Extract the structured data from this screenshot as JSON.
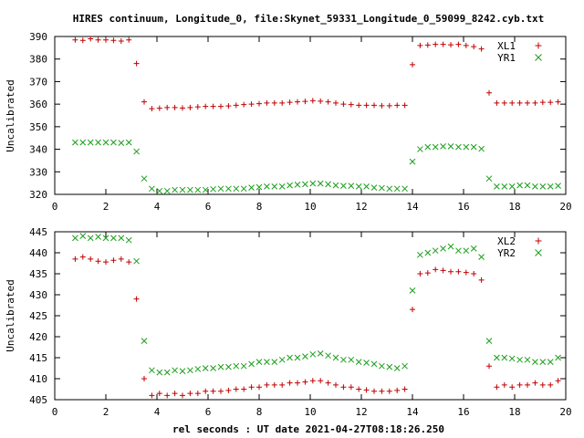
{
  "title": "HIRES continuum, Longitude_0, file:Skynet_59331_Longitude_0_59099_8242.cyb.txt",
  "xlabel": "rel seconds : UT date 2021-04-27T08:18:26.250",
  "colors": {
    "xl": "#c00000",
    "yr": "#1a9e1a"
  },
  "chart_data": [
    {
      "type": "scatter",
      "ylabel": "Uncalibrated",
      "xlim": [
        0,
        20
      ],
      "ylim": [
        320,
        390
      ],
      "xticks": [
        0,
        2,
        4,
        6,
        8,
        10,
        12,
        14,
        16,
        18,
        20
      ],
      "yticks": [
        320,
        330,
        340,
        350,
        360,
        370,
        380,
        390
      ],
      "legend_position": "top-right",
      "series": [
        {
          "name": "XL1",
          "marker": "plus",
          "x": [
            0.8,
            1.1,
            1.4,
            1.7,
            2.0,
            2.3,
            2.6,
            2.9,
            3.2,
            3.5,
            3.8,
            4.1,
            4.4,
            4.7,
            5.0,
            5.3,
            5.6,
            5.9,
            6.2,
            6.5,
            6.8,
            7.1,
            7.4,
            7.7,
            8.0,
            8.3,
            8.6,
            8.9,
            9.2,
            9.5,
            9.8,
            10.1,
            10.4,
            10.7,
            11.0,
            11.3,
            11.6,
            11.9,
            12.2,
            12.5,
            12.8,
            13.1,
            13.4,
            13.7,
            14.0,
            14.3,
            14.6,
            14.9,
            15.2,
            15.5,
            15.8,
            16.1,
            16.4,
            16.7,
            17.0,
            17.3,
            17.6,
            17.9,
            18.2,
            18.5,
            18.8,
            19.1,
            19.4,
            19.7
          ],
          "y": [
            388.5,
            388.3,
            389.0,
            388.5,
            388.5,
            388.3,
            388.0,
            388.5,
            378.0,
            361.0,
            358.0,
            358.2,
            358.5,
            358.5,
            358.3,
            358.5,
            358.8,
            359.0,
            359.0,
            359.0,
            359.2,
            359.5,
            359.8,
            360.0,
            360.2,
            360.5,
            360.5,
            360.5,
            360.8,
            361.0,
            361.2,
            361.5,
            361.3,
            361.0,
            360.5,
            360.0,
            359.8,
            359.5,
            359.5,
            359.5,
            359.3,
            359.3,
            359.5,
            359.5,
            377.5,
            386.0,
            386.2,
            386.5,
            386.5,
            386.3,
            386.5,
            386.0,
            385.5,
            384.5,
            365.0,
            360.5,
            360.5,
            360.5,
            360.5,
            360.5,
            360.5,
            360.8,
            360.8,
            361.0
          ]
        },
        {
          "name": "YR1",
          "marker": "cross",
          "x": [
            0.8,
            1.1,
            1.4,
            1.7,
            2.0,
            2.3,
            2.6,
            2.9,
            3.2,
            3.5,
            3.8,
            4.1,
            4.4,
            4.7,
            5.0,
            5.3,
            5.6,
            5.9,
            6.2,
            6.5,
            6.8,
            7.1,
            7.4,
            7.7,
            8.0,
            8.3,
            8.6,
            8.9,
            9.2,
            9.5,
            9.8,
            10.1,
            10.4,
            10.7,
            11.0,
            11.3,
            11.6,
            11.9,
            12.2,
            12.5,
            12.8,
            13.1,
            13.4,
            13.7,
            14.0,
            14.3,
            14.6,
            14.9,
            15.2,
            15.5,
            15.8,
            16.1,
            16.4,
            16.7,
            17.0,
            17.3,
            17.6,
            17.9,
            18.2,
            18.5,
            18.8,
            19.1,
            19.4,
            19.7
          ],
          "y": [
            343.0,
            343.0,
            343.0,
            343.0,
            343.0,
            343.0,
            342.8,
            343.0,
            339.0,
            327.0,
            322.5,
            321.5,
            321.5,
            322.0,
            322.0,
            322.0,
            322.0,
            322.0,
            322.3,
            322.5,
            322.5,
            322.5,
            322.5,
            323.0,
            323.2,
            323.5,
            323.5,
            323.5,
            324.0,
            324.3,
            324.5,
            324.8,
            324.8,
            324.5,
            324.0,
            323.8,
            323.8,
            323.5,
            323.5,
            323.0,
            322.8,
            322.5,
            322.5,
            322.5,
            334.5,
            340.0,
            341.0,
            341.0,
            341.3,
            341.3,
            341.0,
            341.0,
            341.0,
            340.2,
            327.0,
            323.5,
            323.5,
            323.5,
            324.0,
            324.0,
            323.5,
            323.5,
            323.5,
            323.8
          ]
        }
      ]
    },
    {
      "type": "scatter",
      "ylabel": "Uncalibrated",
      "xlim": [
        0,
        20
      ],
      "ylim": [
        405,
        445
      ],
      "xticks": [
        0,
        2,
        4,
        6,
        8,
        10,
        12,
        14,
        16,
        18,
        20
      ],
      "yticks": [
        405,
        410,
        415,
        420,
        425,
        430,
        435,
        440,
        445
      ],
      "legend_position": "top-right",
      "series": [
        {
          "name": "XL2",
          "marker": "plus",
          "x": [
            0.8,
            1.1,
            1.4,
            1.7,
            2.0,
            2.3,
            2.6,
            2.9,
            3.2,
            3.5,
            3.8,
            4.1,
            4.4,
            4.7,
            5.0,
            5.3,
            5.6,
            5.9,
            6.2,
            6.5,
            6.8,
            7.1,
            7.4,
            7.7,
            8.0,
            8.3,
            8.6,
            8.9,
            9.2,
            9.5,
            9.8,
            10.1,
            10.4,
            10.7,
            11.0,
            11.3,
            11.6,
            11.9,
            12.2,
            12.5,
            12.8,
            13.1,
            13.4,
            13.7,
            14.0,
            14.3,
            14.6,
            14.9,
            15.2,
            15.5,
            15.8,
            16.1,
            16.4,
            16.7,
            17.0,
            17.3,
            17.6,
            17.9,
            18.2,
            18.5,
            18.8,
            19.1,
            19.4,
            19.7
          ],
          "y": [
            438.5,
            439.0,
            438.5,
            438.0,
            437.8,
            438.2,
            438.5,
            437.8,
            429.0,
            410.0,
            406.0,
            406.5,
            406.0,
            406.5,
            406.0,
            406.5,
            406.5,
            407.0,
            407.0,
            407.0,
            407.2,
            407.5,
            407.5,
            408.0,
            408.0,
            408.5,
            408.5,
            408.5,
            409.0,
            409.0,
            409.2,
            409.5,
            409.5,
            409.0,
            408.5,
            408.0,
            408.0,
            407.5,
            407.3,
            407.0,
            407.0,
            407.0,
            407.2,
            407.5,
            426.5,
            435.0,
            435.2,
            436.0,
            435.8,
            435.5,
            435.5,
            435.3,
            435.0,
            433.5,
            413.0,
            408.0,
            408.5,
            408.0,
            408.5,
            408.5,
            409.0,
            408.5,
            408.5,
            409.5
          ]
        },
        {
          "name": "YR2",
          "marker": "cross",
          "x": [
            0.8,
            1.1,
            1.4,
            1.7,
            2.0,
            2.3,
            2.6,
            2.9,
            3.2,
            3.5,
            3.8,
            4.1,
            4.4,
            4.7,
            5.0,
            5.3,
            5.6,
            5.9,
            6.2,
            6.5,
            6.8,
            7.1,
            7.4,
            7.7,
            8.0,
            8.3,
            8.6,
            8.9,
            9.2,
            9.5,
            9.8,
            10.1,
            10.4,
            10.7,
            11.0,
            11.3,
            11.6,
            11.9,
            12.2,
            12.5,
            12.8,
            13.1,
            13.4,
            13.7,
            14.0,
            14.3,
            14.6,
            14.9,
            15.2,
            15.5,
            15.8,
            16.1,
            16.4,
            16.7,
            17.0,
            17.3,
            17.6,
            17.9,
            18.2,
            18.5,
            18.8,
            19.1,
            19.4,
            19.7
          ],
          "y": [
            443.5,
            444.0,
            443.5,
            443.8,
            443.5,
            443.5,
            443.5,
            443.0,
            438.0,
            419.0,
            412.0,
            411.5,
            411.5,
            412.0,
            411.8,
            412.0,
            412.3,
            412.5,
            412.5,
            412.8,
            412.8,
            413.0,
            413.0,
            413.5,
            414.0,
            414.0,
            414.0,
            414.5,
            415.0,
            415.0,
            415.3,
            415.8,
            416.0,
            415.5,
            415.0,
            414.5,
            414.5,
            414.0,
            413.8,
            413.5,
            413.0,
            412.8,
            412.5,
            413.0,
            431.0,
            439.5,
            440.0,
            440.5,
            441.0,
            441.5,
            440.5,
            440.5,
            441.0,
            439.0,
            419.0,
            415.0,
            415.0,
            414.8,
            414.5,
            414.5,
            414.0,
            414.0,
            414.0,
            415.0
          ]
        }
      ]
    }
  ]
}
